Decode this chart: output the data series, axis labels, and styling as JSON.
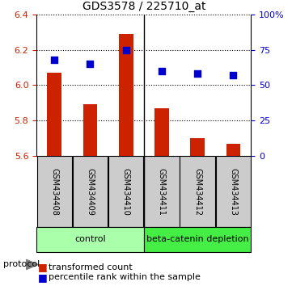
{
  "title": "GDS3578 / 225710_at",
  "samples": [
    "GSM434408",
    "GSM434409",
    "GSM434410",
    "GSM434411",
    "GSM434412",
    "GSM434413"
  ],
  "transformed_count": [
    6.07,
    5.89,
    6.29,
    5.87,
    5.7,
    5.67
  ],
  "percentile_rank": [
    68,
    65,
    75,
    60,
    58,
    57
  ],
  "ylim_left": [
    5.6,
    6.4
  ],
  "ylim_right": [
    0,
    100
  ],
  "yticks_left": [
    5.6,
    5.8,
    6.0,
    6.2,
    6.4
  ],
  "yticks_right": [
    0,
    25,
    50,
    75,
    100
  ],
  "bar_color": "#cc2200",
  "dot_color": "#0000cc",
  "bar_width": 0.4,
  "groups": [
    {
      "label": "control",
      "color": "#aaffaa"
    },
    {
      "label": "beta-catenin depletion",
      "color": "#44ee44"
    }
  ],
  "protocol_label": "protocol",
  "legend_bar_label": "transformed count",
  "legend_dot_label": "percentile rank within the sample",
  "sample_box_color": "#cccccc"
}
